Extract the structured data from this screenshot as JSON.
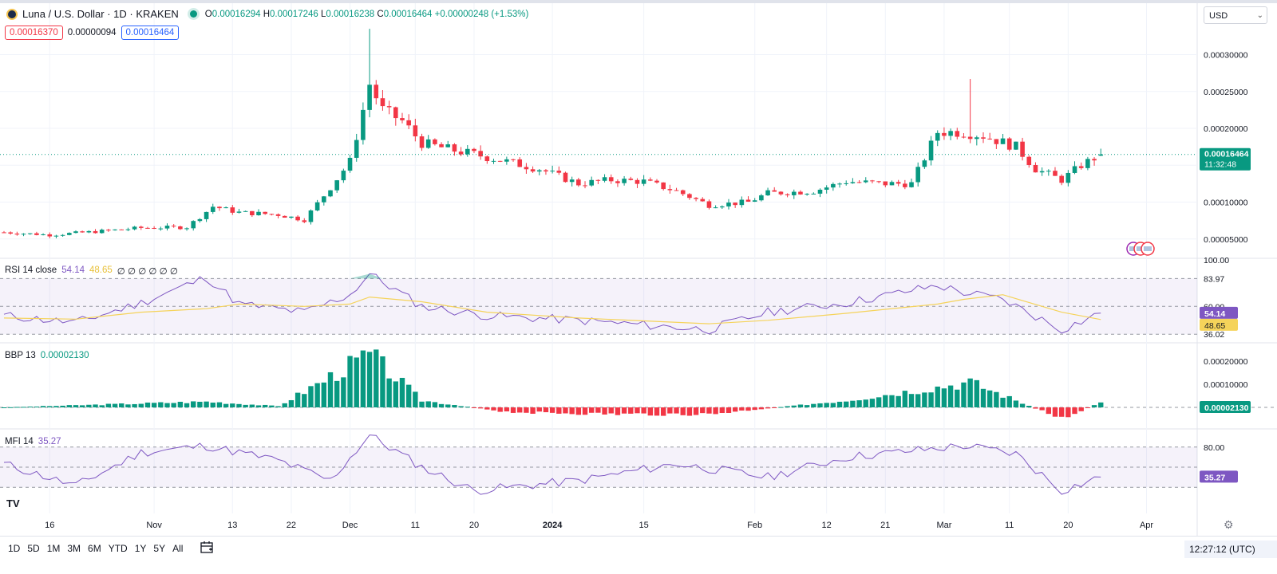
{
  "header": {
    "title": "Luna / U.S. Dollar · 1D · KRAKEN",
    "open_label": "O",
    "open": "0.00016294",
    "high_label": "H",
    "high": "0.00017246",
    "low_label": "L",
    "low": "0.00016238",
    "close_label": "C",
    "close": "0.00016464",
    "change": "+0.00000248 (+1.53%)",
    "bid": "0.00016370",
    "spread": "0.00000094",
    "ask": "0.00016464",
    "currency": "USD"
  },
  "price_axis": {
    "current_price": "0.00016464",
    "countdown": "11:32:48",
    "ticks": [
      "0.00030000",
      "0.00025000",
      "0.00020000",
      "0.00010000",
      "0.00005000"
    ]
  },
  "rsi": {
    "label": "RSI 14 close",
    "value": "54.14",
    "ma_value": "48.65",
    "extras": "∅ ∅ ∅ ∅ ∅ ∅",
    "ticks": [
      "100.00",
      "83.97",
      "60.00",
      "36.02"
    ]
  },
  "bbp": {
    "label": "BBP 13",
    "value": "0.00002130",
    "ticks": [
      "0.00020000",
      "0.00010000"
    ]
  },
  "mfi": {
    "label": "MFI 14",
    "value": "35.27",
    "ticks": [
      "80.00"
    ]
  },
  "colors": {
    "up": "#089981",
    "down": "#f23645",
    "rsi": "#7e57c2",
    "rsi_ma": "#f5d35a",
    "mfi": "#7e57c2"
  },
  "timeframes": [
    "1D",
    "5D",
    "1M",
    "3M",
    "6M",
    "YTD",
    "1Y",
    "5Y",
    "All"
  ],
  "clock": "12:27:12 (UTC)",
  "chart_data": [
    {
      "type": "candlestick",
      "title": "Luna / U.S. Dollar · 1D · KRAKEN",
      "ylim": [
        2e-05,
        0.00034
      ],
      "x_ticks": [
        "16",
        "Nov",
        "13",
        "22",
        "Dec",
        "11",
        "20",
        "2024",
        "15",
        "Feb",
        "12",
        "21",
        "Mar",
        "11",
        "20",
        "Apr"
      ],
      "close_path": [
        {
          "date": "2023-10-09",
          "c": 5.9e-05
        },
        {
          "date": "2023-10-16",
          "c": 5.55e-05
        },
        {
          "date": "2023-10-23",
          "c": 6e-05
        },
        {
          "date": "2023-10-30",
          "c": 6.5e-05
        },
        {
          "date": "2023-11-06",
          "c": 6.6e-05
        },
        {
          "date": "2023-11-10",
          "c": 9.4e-05
        },
        {
          "date": "2023-11-14",
          "c": 8.6e-05
        },
        {
          "date": "2023-11-20",
          "c": 8.3e-05
        },
        {
          "date": "2023-11-24",
          "c": 7.6e-05
        },
        {
          "date": "2023-11-28",
          "c": 0.00012
        },
        {
          "date": "2023-12-01",
          "c": 0.000155
        },
        {
          "date": "2023-12-04",
          "c": 0.00026
        },
        {
          "date": "2023-12-06",
          "c": 0.000225
        },
        {
          "date": "2023-12-09",
          "c": 0.00021
        },
        {
          "date": "2023-12-12",
          "c": 0.00018
        },
        {
          "date": "2023-12-17",
          "c": 0.00017
        },
        {
          "date": "2023-12-20",
          "c": 0.000165
        },
        {
          "date": "2023-12-25",
          "c": 0.000155
        },
        {
          "date": "2023-12-30",
          "c": 0.000145
        },
        {
          "date": "2024-01-05",
          "c": 0.000125
        },
        {
          "date": "2024-01-10",
          "c": 0.00013
        },
        {
          "date": "2024-01-15",
          "c": 0.000128
        },
        {
          "date": "2024-01-20",
          "c": 0.000115
        },
        {
          "date": "2024-01-25",
          "c": 9.6e-05
        },
        {
          "date": "2024-01-31",
          "c": 0.0001
        },
        {
          "date": "2024-02-03",
          "c": 0.000112
        },
        {
          "date": "2024-02-10",
          "c": 0.000115
        },
        {
          "date": "2024-02-15",
          "c": 0.000128
        },
        {
          "date": "2024-02-21",
          "c": 0.000125
        },
        {
          "date": "2024-02-25",
          "c": 0.000125
        },
        {
          "date": "2024-02-29",
          "c": 0.000195
        },
        {
          "date": "2024-03-04",
          "c": 0.000195
        },
        {
          "date": "2024-03-07",
          "c": 0.00019
        },
        {
          "date": "2024-03-12",
          "c": 0.000175
        },
        {
          "date": "2024-03-15",
          "c": 0.000145
        },
        {
          "date": "2024-03-19",
          "c": 0.00013
        },
        {
          "date": "2024-03-22",
          "c": 0.00015
        },
        {
          "date": "2024-03-25",
          "c": 0.0001646
        }
      ],
      "spikes": [
        {
          "date": "2023-12-04",
          "high": 0.000335
        },
        {
          "date": "2024-03-05",
          "high": 0.000267
        }
      ]
    },
    {
      "type": "line",
      "title": "RSI 14 close",
      "ylim": [
        30,
        100
      ],
      "x": [
        "2023-10-09",
        "2023-10-20",
        "2023-10-30",
        "2023-11-09",
        "2023-11-14",
        "2023-11-24",
        "2023-12-01",
        "2023-12-04",
        "2023-12-12",
        "2023-12-22",
        "2024-01-05",
        "2024-01-25",
        "2024-02-03",
        "2024-02-15",
        "2024-02-29",
        "2024-03-04",
        "2024-03-10",
        "2024-03-19",
        "2024-03-25"
      ],
      "series": [
        {
          "values": [
            52,
            46,
            63,
            85,
            62,
            55,
            70,
            88,
            60,
            52,
            48,
            40,
            55,
            63,
            78,
            72,
            66,
            40,
            54.14
          ]
        },
        {
          "values": [
            50,
            49,
            55,
            58,
            62,
            60,
            62,
            68,
            64,
            55,
            50,
            45,
            48,
            54,
            62,
            66,
            70,
            55,
            48.65
          ]
        }
      ],
      "bands": [
        36.02,
        60.0,
        83.97
      ]
    },
    {
      "type": "histogram",
      "title": "BBP 13",
      "values_path": [
        {
          "date": "2023-10-09",
          "v": 0.0
        },
        {
          "date": "2023-11-09",
          "v": 2.5e-05
        },
        {
          "date": "2023-11-20",
          "v": 5e-06
        },
        {
          "date": "2023-12-04",
          "v": 0.00023
        },
        {
          "date": "2023-12-12",
          "v": 3e-05
        },
        {
          "date": "2023-12-25",
          "v": -2e-05
        },
        {
          "date": "2024-01-10",
          "v": -3e-05
        },
        {
          "date": "2024-01-25",
          "v": -3e-05
        },
        {
          "date": "2024-02-15",
          "v": 3e-05
        },
        {
          "date": "2024-03-05",
          "v": 0.00011
        },
        {
          "date": "2024-03-19",
          "v": -5e-05
        },
        {
          "date": "2024-03-25",
          "v": 2.13e-05
        }
      ]
    },
    {
      "type": "line",
      "title": "MFI 14",
      "ylim": [
        0,
        100
      ],
      "x": [
        "2023-10-09",
        "2023-10-20",
        "2023-10-30",
        "2023-11-09",
        "2023-11-20",
        "2023-11-28",
        "2023-12-04",
        "2023-12-12",
        "2023-12-20",
        "2024-01-05",
        "2024-01-20",
        "2024-02-03",
        "2024-02-15",
        "2024-03-04",
        "2024-03-12",
        "2024-03-19",
        "2024-03-25"
      ],
      "series": [
        {
          "values": [
            55,
            22,
            72,
            82,
            60,
            30,
            98,
            50,
            15,
            30,
            55,
            35,
            65,
            82,
            70,
            15,
            35.27
          ]
        }
      ],
      "bands": [
        20,
        50,
        80
      ]
    }
  ]
}
